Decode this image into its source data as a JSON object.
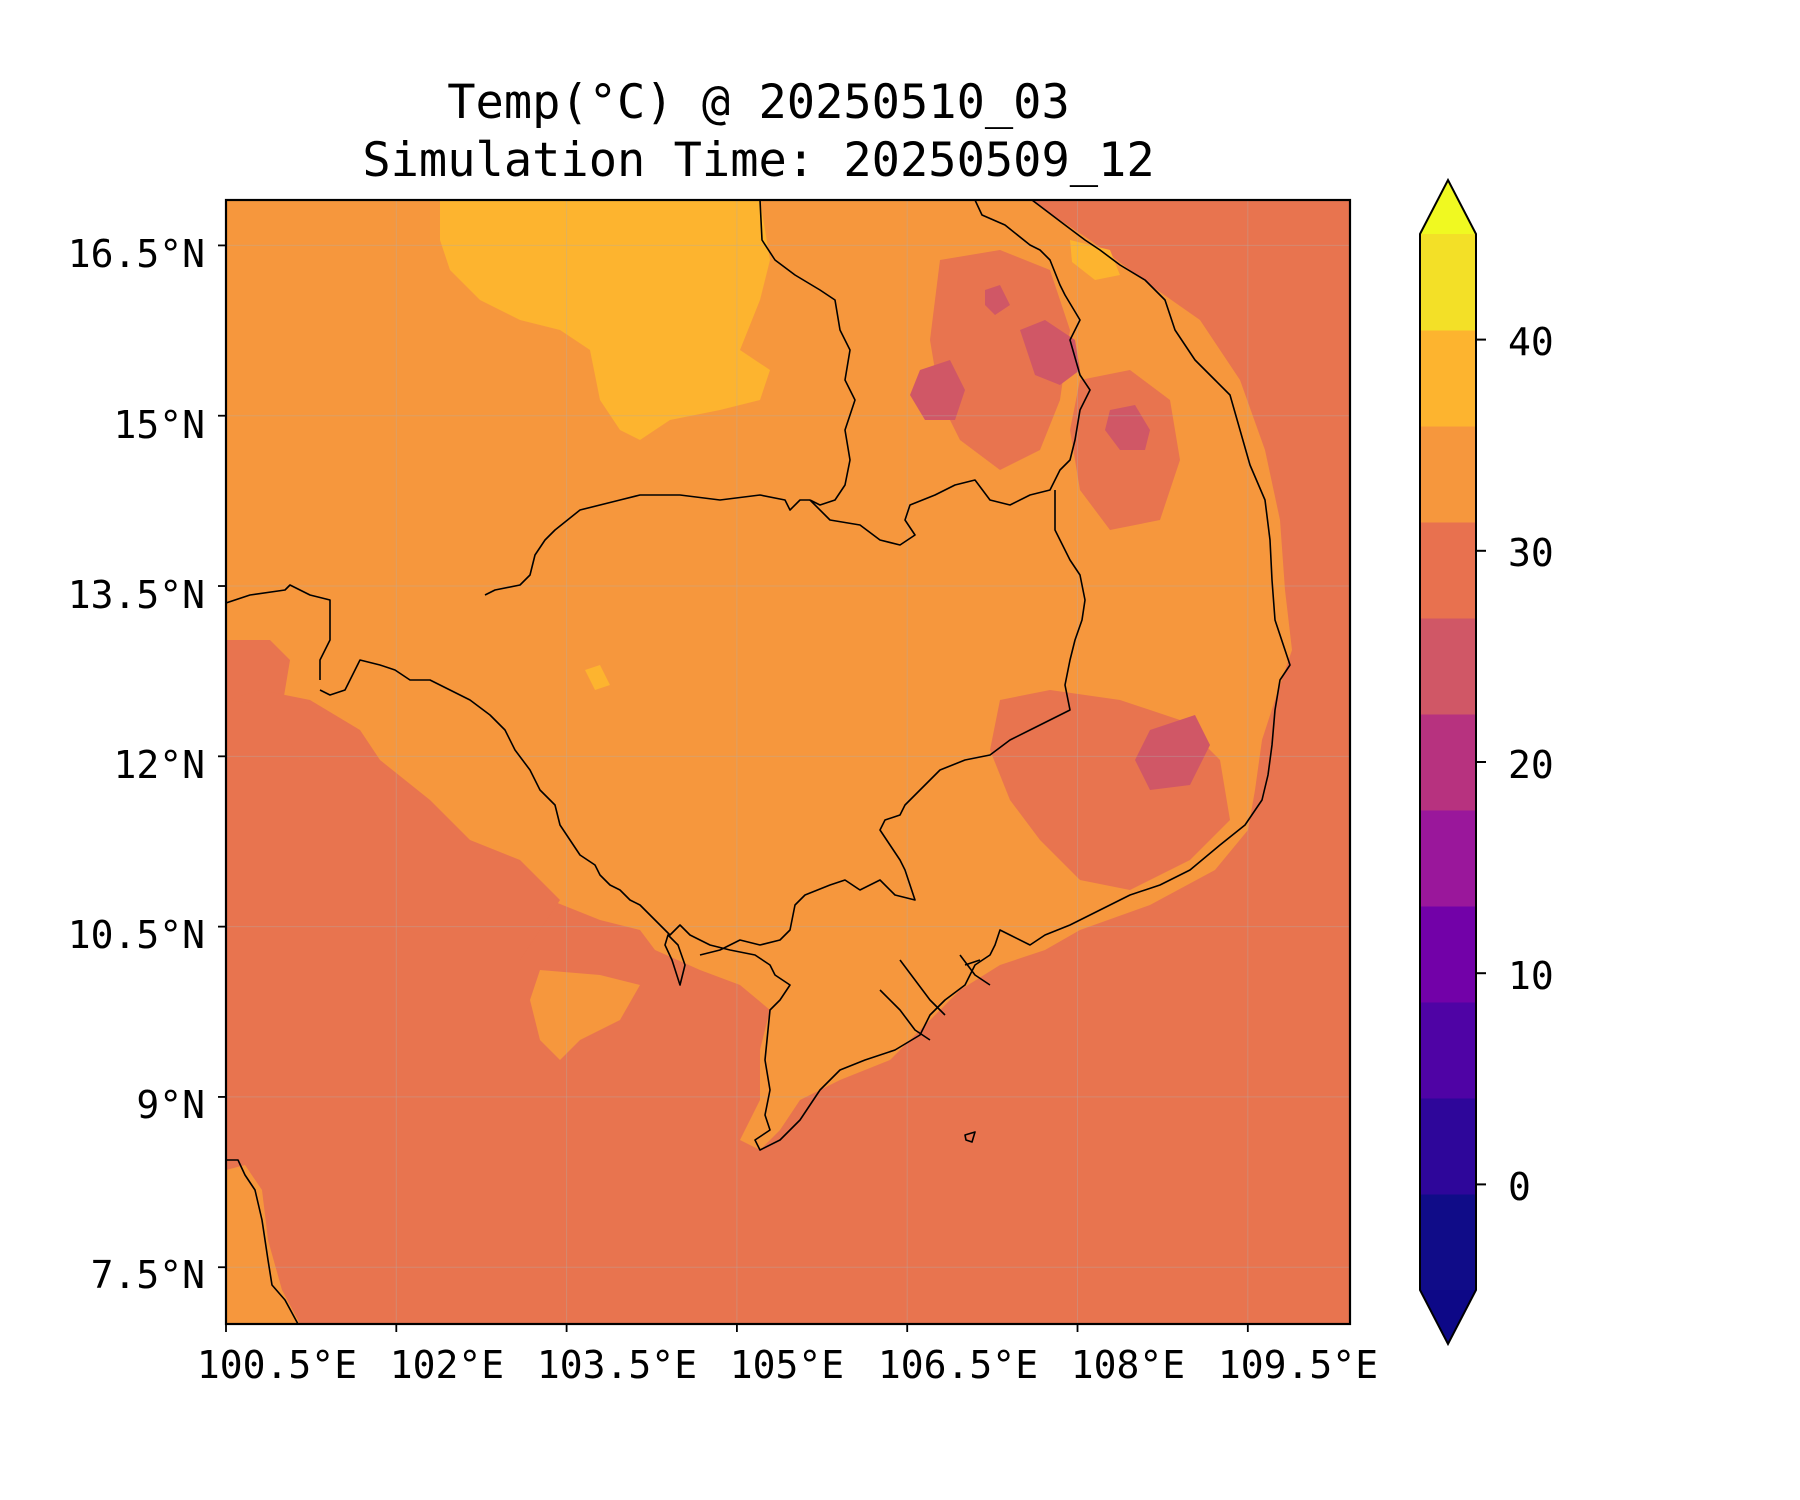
{
  "title": {
    "line1": "Temp(°C) @ 20250510_03",
    "line2": "Simulation Time: 20250509_12"
  },
  "axes": {
    "lat_ticks": [
      "16.5°N",
      "15°N",
      "13.5°N",
      "12°N",
      "10.5°N",
      "9°N",
      "7.5°N"
    ],
    "lon_ticks": [
      "100.5°E",
      "102°E",
      "103.5°E",
      "105°E",
      "106.5°E",
      "108°E",
      "109.5°E"
    ],
    "lon_range": [
      100.5,
      110.4
    ],
    "lat_range": [
      7.0,
      16.9
    ]
  },
  "colorbar": {
    "ticks": [
      "40",
      "30",
      "20",
      "10",
      "0"
    ],
    "levels": [
      -5,
      0,
      5,
      10,
      15,
      20,
      25,
      30,
      35,
      40,
      45
    ],
    "colors": [
      "#100c88",
      "#2e069a",
      "#4f03a5",
      "#7201a8",
      "#9a179b",
      "#b7327f",
      "#d05766",
      "#e8714f",
      "#f6973d",
      "#fdb42f",
      "#f3e027"
    ],
    "extend_under_color": "#0d0887",
    "extend_over_color": "#f0f921",
    "extend": "both"
  },
  "map": {
    "background_color": "#e8744f",
    "land_color": "#f6973d",
    "warm_color": "#fdb42f",
    "cool_color": "#d05766",
    "coastline_color": "#000000",
    "grid": true
  }
}
